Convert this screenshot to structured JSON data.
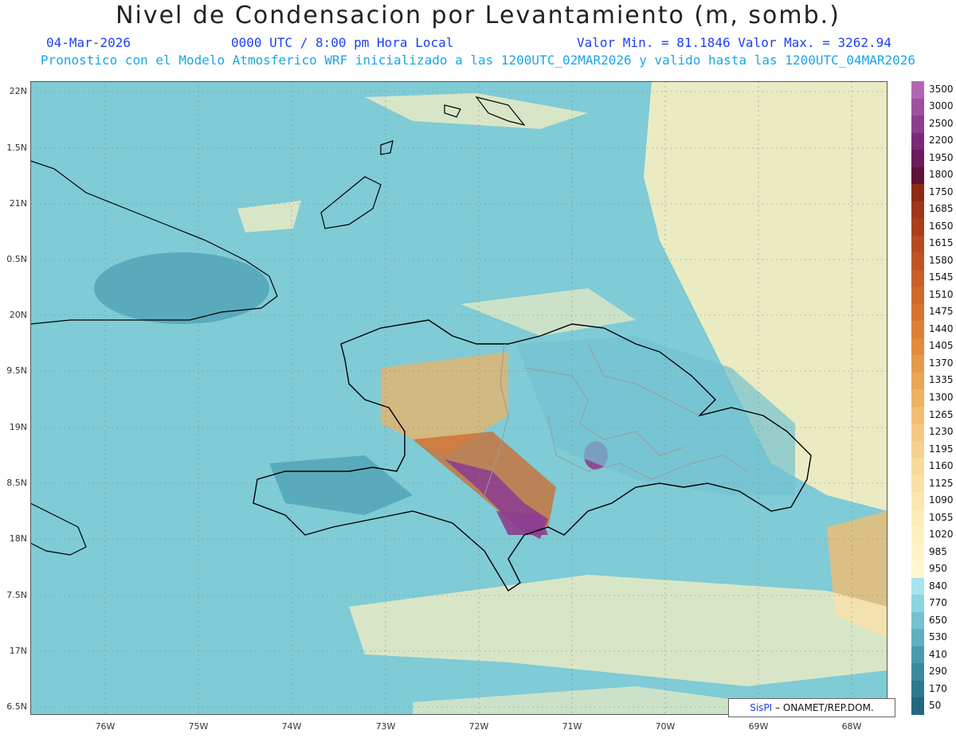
{
  "header": {
    "title": "Nivel de Condensacion por Levantamiento (m, somb.)",
    "date": "04-Mar-2026",
    "time": "0000 UTC / 8:00 pm Hora Local",
    "minmax": "Valor Min. = 81.1846  Valor Max. = 3262.94",
    "subtitle": "Pronostico con el Modelo Atmosferico WRF inicializado a las 1200UTC_02MAR2026 y valido hasta las  1200UTC_04MAR2026"
  },
  "axes": {
    "y_labels": [
      "22N",
      "1.5N",
      "21N",
      "0.5N",
      "20N",
      "9.5N",
      "19N",
      "8.5N",
      "18N",
      "7.5N",
      "17N",
      "6.5N"
    ],
    "x_labels": [
      "76W",
      "75W",
      "74W",
      "73W",
      "72W",
      "71W",
      "70W",
      "69W",
      "68W"
    ]
  },
  "colorbar": {
    "labels": [
      "3500",
      "3000",
      "2500",
      "2200",
      "1950",
      "1800",
      "1750",
      "1685",
      "1650",
      "1615",
      "1580",
      "1545",
      "1510",
      "1475",
      "1440",
      "1405",
      "1370",
      "1335",
      "1300",
      "1265",
      "1230",
      "1195",
      "1160",
      "1125",
      "1090",
      "1055",
      "1020",
      "985",
      "950",
      "840",
      "770",
      "650",
      "530",
      "410",
      "290",
      "170",
      "50"
    ],
    "colors": [
      "#b266b2",
      "#a050a0",
      "#8e3e8e",
      "#7a2a7a",
      "#6a1c5c",
      "#5c1438",
      "#8e2a14",
      "#a0361a",
      "#ad3e1c",
      "#b94a20",
      "#c25424",
      "#c95e28",
      "#cf692c",
      "#d67430",
      "#dc8036",
      "#e28c3c",
      "#e69a48",
      "#eaa656",
      "#eeb264",
      "#f2bd72",
      "#f4c880",
      "#f6d18e",
      "#f8da9a",
      "#f9e1a6",
      "#fbe7b0",
      "#fcecb8",
      "#fdf1c0",
      "#fef4c8",
      "#fef7d0",
      "#a8e4ec",
      "#8cd4e0",
      "#74c2d0",
      "#5cb0c0",
      "#489cb0",
      "#3a8aa0",
      "#2e7890",
      "#246680"
    ]
  },
  "map": {
    "background_color": "#7fcbd6",
    "coast_color": "#000000",
    "province_color": "#9a9a9a"
  },
  "credit": {
    "brand": "SisPI",
    "text": "– ONAMET/REP.DOM."
  }
}
